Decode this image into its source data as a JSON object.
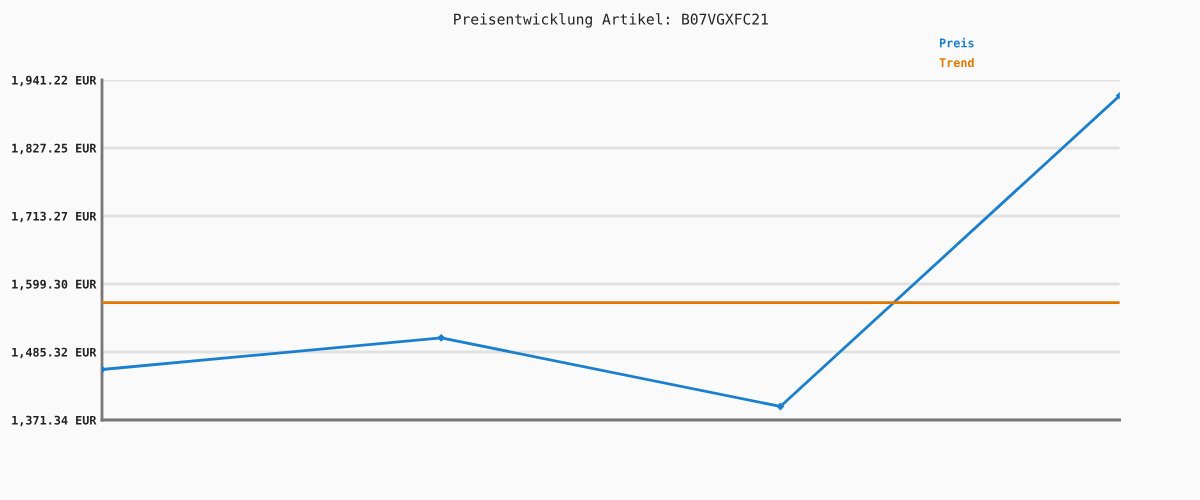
{
  "chart_data": {
    "type": "line",
    "title": "Preisentwicklung Artikel: B07VGXFC21",
    "categories": [
      null,
      null,
      null,
      null
    ],
    "series": [
      {
        "name": "Preis",
        "color": "#1a7fcf",
        "values": [
          1456,
          1509,
          1394,
          1915
        ]
      },
      {
        "name": "Trend",
        "color": "#e07800",
        "values": [
          1568,
          1568,
          1568,
          1568
        ],
        "marker": "none"
      }
    ],
    "ylim": [
      1371.34,
      1941.22
    ],
    "yticks": [
      {
        "value": 1371.34,
        "label": "1,371.34 EUR"
      },
      {
        "value": 1485.32,
        "label": "1,485.32 EUR"
      },
      {
        "value": 1599.3,
        "label": "1,599.30 EUR"
      },
      {
        "value": 1713.27,
        "label": "1,713.27 EUR"
      },
      {
        "value": 1827.25,
        "label": "1,827.25 EUR"
      },
      {
        "value": 1941.22,
        "label": "1,941.22 EUR"
      }
    ],
    "tick_labels": "y",
    "grid": "y",
    "legend": "top right",
    "marker": "diamond",
    "line_style": "solid"
  }
}
